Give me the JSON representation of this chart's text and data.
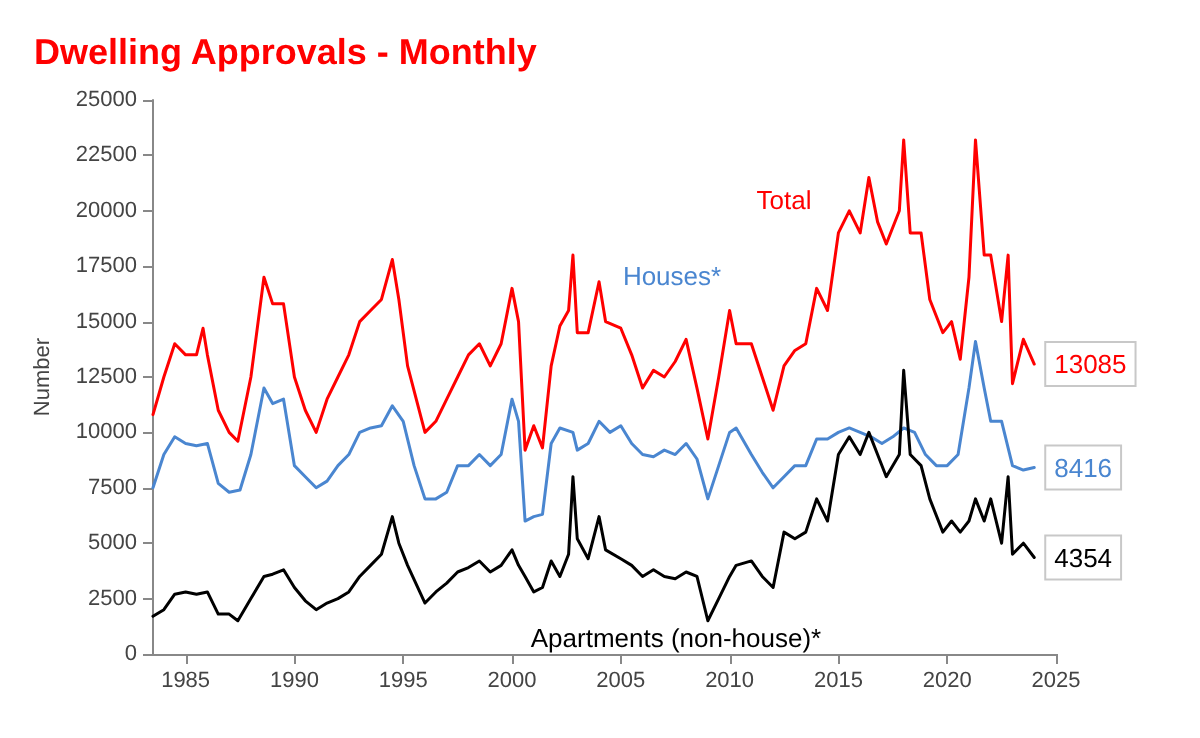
{
  "chart_data": {
    "type": "line",
    "title": "Dwelling Approvals - Monthly",
    "ylabel": "Number",
    "xlim": [
      1983.5,
      2025
    ],
    "xticks": [
      1985,
      1990,
      1995,
      2000,
      2005,
      2010,
      2015,
      2020,
      2025
    ],
    "ylim": [
      0,
      25000
    ],
    "yticks": [
      0,
      2500,
      5000,
      7500,
      10000,
      12500,
      15000,
      17500,
      20000,
      22500,
      25000
    ],
    "grid": false,
    "marker": "none",
    "line_style": "solid",
    "annotations": [
      "Total",
      "Houses*",
      "Apartments (non-house)*"
    ],
    "series": [
      {
        "color": "#ff0000",
        "x": [
          1983.5,
          1984.0,
          1984.5,
          1985.0,
          1985.5,
          1985.8,
          1986.0,
          1986.5,
          1987.0,
          1987.4,
          1988.0,
          1988.6,
          1989.0,
          1989.5,
          1990.0,
          1990.5,
          1991.0,
          1991.5,
          1992.0,
          1992.5,
          1993.0,
          1993.5,
          1994.0,
          1994.5,
          1994.8,
          1995.2,
          1996.0,
          1996.5,
          1997.0,
          1997.5,
          1998.0,
          1998.5,
          1999.0,
          1999.5,
          2000.0,
          2000.3,
          2000.6,
          2001.0,
          2001.4,
          2001.8,
          2002.2,
          2002.6,
          2002.8,
          2003.0,
          2003.5,
          2004.0,
          2004.3,
          2005.0,
          2005.5,
          2006.0,
          2006.5,
          2007.0,
          2007.5,
          2008.0,
          2008.5,
          2009.0,
          2009.5,
          2010.0,
          2010.3,
          2011.0,
          2011.5,
          2012.0,
          2012.5,
          2013.0,
          2013.5,
          2014.0,
          2014.5,
          2015.0,
          2015.5,
          2016.0,
          2016.4,
          2016.8,
          2017.2,
          2017.8,
          2018.0,
          2018.3,
          2018.8,
          2019.2,
          2019.8,
          2020.2,
          2020.6,
          2021.0,
          2021.3,
          2021.7,
          2022.0,
          2022.5,
          2022.8,
          2023.0,
          2023.5,
          2024.0
        ],
        "values": [
          10800,
          12500,
          14000,
          13500,
          13500,
          14700,
          13500,
          11000,
          10000,
          9600,
          12500,
          17000,
          15800,
          15800,
          12500,
          11000,
          10000,
          11500,
          12500,
          13500,
          15000,
          15500,
          16000,
          17800,
          16000,
          13000,
          10000,
          10500,
          11500,
          12500,
          13500,
          14000,
          13000,
          14000,
          16500,
          15000,
          9200,
          10300,
          9300,
          13000,
          14800,
          15500,
          18000,
          14500,
          14500,
          16800,
          15000,
          14700,
          13500,
          12000,
          12800,
          12500,
          13200,
          14200,
          12000,
          9700,
          12500,
          15500,
          14000,
          14000,
          12500,
          11000,
          13000,
          13700,
          14000,
          16500,
          15500,
          19000,
          20000,
          19000,
          21500,
          19500,
          18500,
          20000,
          23200,
          19000,
          19000,
          16000,
          14500,
          15000,
          13300,
          17000,
          23200,
          18000,
          18000,
          15000,
          18000,
          12200,
          14200,
          13085
        ],
        "value_labels": [
          null,
          null,
          null,
          null,
          null,
          null,
          null,
          null,
          null,
          null,
          null,
          null,
          null,
          null,
          null,
          null,
          null,
          null,
          null,
          null,
          null,
          null,
          null,
          null,
          null,
          null,
          null,
          null,
          null,
          null,
          null,
          null,
          null,
          null,
          null,
          null,
          null,
          null,
          null,
          null,
          null,
          null,
          null,
          null,
          null,
          null,
          null,
          null,
          null,
          null,
          null,
          null,
          null,
          null,
          null,
          null,
          null,
          null,
          null,
          null,
          null,
          null,
          null,
          null,
          null,
          null,
          null,
          null,
          null,
          null,
          null,
          null,
          null,
          null,
          null,
          null,
          null,
          null,
          null,
          null,
          null,
          null,
          null,
          null,
          null,
          null,
          null,
          null,
          null,
          "13085"
        ]
      },
      {
        "color": "#4a86d0",
        "x": [
          1983.5,
          1984.0,
          1984.5,
          1985.0,
          1985.5,
          1986.0,
          1986.5,
          1987.0,
          1987.5,
          1988.0,
          1988.6,
          1989.0,
          1989.5,
          1990.0,
          1990.5,
          1991.0,
          1991.5,
          1992.0,
          1992.5,
          1993.0,
          1993.5,
          1994.0,
          1994.5,
          1995.0,
          1995.5,
          1996.0,
          1996.5,
          1997.0,
          1997.5,
          1998.0,
          1998.5,
          1999.0,
          1999.5,
          2000.0,
          2000.3,
          2000.6,
          2001.0,
          2001.4,
          2001.8,
          2002.2,
          2002.8,
          2003.0,
          2003.5,
          2004.0,
          2004.5,
          2005.0,
          2005.5,
          2006.0,
          2006.5,
          2007.0,
          2007.5,
          2008.0,
          2008.5,
          2009.0,
          2009.5,
          2010.0,
          2010.3,
          2011.0,
          2011.5,
          2012.0,
          2012.5,
          2013.0,
          2013.5,
          2014.0,
          2014.5,
          2015.0,
          2015.5,
          2016.0,
          2016.5,
          2017.0,
          2017.5,
          2018.0,
          2018.5,
          2019.0,
          2019.5,
          2020.0,
          2020.5,
          2021.0,
          2021.3,
          2021.7,
          2022.0,
          2022.5,
          2023.0,
          2023.5,
          2024.0
        ],
        "values": [
          7500,
          9000,
          9800,
          9500,
          9400,
          9500,
          7700,
          7300,
          7400,
          9000,
          12000,
          11300,
          11500,
          8500,
          8000,
          7500,
          7800,
          8500,
          9000,
          10000,
          10200,
          10300,
          11200,
          10500,
          8500,
          7000,
          7000,
          7300,
          8500,
          8500,
          9000,
          8500,
          9000,
          11500,
          10500,
          6000,
          6200,
          6300,
          9500,
          10200,
          10000,
          9200,
          9500,
          10500,
          10000,
          10300,
          9500,
          9000,
          8900,
          9200,
          9000,
          9500,
          8800,
          7000,
          8500,
          10000,
          10200,
          9000,
          8200,
          7500,
          8000,
          8500,
          8500,
          9700,
          9700,
          10000,
          10200,
          10000,
          9800,
          9500,
          9800,
          10200,
          10000,
          9000,
          8500,
          8500,
          9000,
          12000,
          14100,
          12000,
          10500,
          10500,
          8500,
          8300,
          8416
        ],
        "value_labels": [
          null,
          null,
          null,
          null,
          null,
          null,
          null,
          null,
          null,
          null,
          null,
          null,
          null,
          null,
          null,
          null,
          null,
          null,
          null,
          null,
          null,
          null,
          null,
          null,
          null,
          null,
          null,
          null,
          null,
          null,
          null,
          null,
          null,
          null,
          null,
          null,
          null,
          null,
          null,
          null,
          null,
          null,
          null,
          null,
          null,
          null,
          null,
          null,
          null,
          null,
          null,
          null,
          null,
          null,
          null,
          null,
          null,
          null,
          null,
          null,
          null,
          null,
          null,
          null,
          null,
          null,
          null,
          null,
          null,
          null,
          null,
          null,
          null,
          null,
          null,
          null,
          null,
          null,
          null,
          null,
          null,
          null,
          null,
          null,
          "8416"
        ]
      },
      {
        "color": "#000000",
        "x": [
          1983.5,
          1984.0,
          1984.5,
          1985.0,
          1985.5,
          1986.0,
          1986.5,
          1987.0,
          1987.4,
          1988.0,
          1988.6,
          1989.0,
          1989.5,
          1990.0,
          1990.5,
          1991.0,
          1991.5,
          1992.0,
          1992.5,
          1993.0,
          1993.5,
          1994.0,
          1994.5,
          1994.8,
          1995.2,
          1996.0,
          1996.5,
          1997.0,
          1997.5,
          1998.0,
          1998.5,
          1999.0,
          1999.5,
          2000.0,
          2000.3,
          2000.6,
          2001.0,
          2001.4,
          2001.8,
          2002.2,
          2002.6,
          2002.8,
          2003.0,
          2003.5,
          2004.0,
          2004.3,
          2005.0,
          2005.5,
          2006.0,
          2006.5,
          2007.0,
          2007.5,
          2008.0,
          2008.5,
          2009.0,
          2009.5,
          2010.0,
          2010.3,
          2011.0,
          2011.5,
          2012.0,
          2012.5,
          2013.0,
          2013.5,
          2014.0,
          2014.5,
          2015.0,
          2015.5,
          2016.0,
          2016.4,
          2016.8,
          2017.2,
          2017.8,
          2018.0,
          2018.3,
          2018.8,
          2019.2,
          2019.8,
          2020.2,
          2020.6,
          2021.0,
          2021.3,
          2021.7,
          2022.0,
          2022.5,
          2022.8,
          2023.0,
          2023.5,
          2024.0
        ],
        "values": [
          1700,
          2000,
          2700,
          2800,
          2700,
          2800,
          1800,
          1800,
          1500,
          2500,
          3500,
          3600,
          3800,
          3000,
          2400,
          2000,
          2300,
          2500,
          2800,
          3500,
          4000,
          4500,
          6200,
          5000,
          4000,
          2300,
          2800,
          3200,
          3700,
          3900,
          4200,
          3700,
          4000,
          4700,
          4000,
          3500,
          2800,
          3000,
          4200,
          3500,
          4500,
          8000,
          5200,
          4300,
          6200,
          4700,
          4300,
          4000,
          3500,
          3800,
          3500,
          3400,
          3700,
          3500,
          1500,
          2500,
          3500,
          4000,
          4200,
          3500,
          3000,
          5500,
          5200,
          5500,
          7000,
          6000,
          9000,
          9800,
          9000,
          10000,
          9000,
          8000,
          9000,
          12800,
          9000,
          8500,
          7000,
          5500,
          6000,
          5500,
          6000,
          7000,
          6000,
          7000,
          5000,
          8000,
          4500,
          5000,
          4354
        ],
        "value_labels": [
          null,
          null,
          null,
          null,
          null,
          null,
          null,
          null,
          null,
          null,
          null,
          null,
          null,
          null,
          null,
          null,
          null,
          null,
          null,
          null,
          null,
          null,
          null,
          null,
          null,
          null,
          null,
          null,
          null,
          null,
          null,
          null,
          null,
          null,
          null,
          null,
          null,
          null,
          null,
          null,
          null,
          null,
          null,
          null,
          null,
          null,
          null,
          null,
          null,
          null,
          null,
          null,
          null,
          null,
          null,
          null,
          null,
          null,
          null,
          null,
          null,
          null,
          null,
          null,
          null,
          null,
          null,
          null,
          null,
          null,
          null,
          null,
          null,
          null,
          null,
          null,
          null,
          null,
          null,
          null,
          null,
          null,
          null,
          null,
          null,
          null,
          null,
          null,
          "4354"
        ]
      }
    ]
  }
}
